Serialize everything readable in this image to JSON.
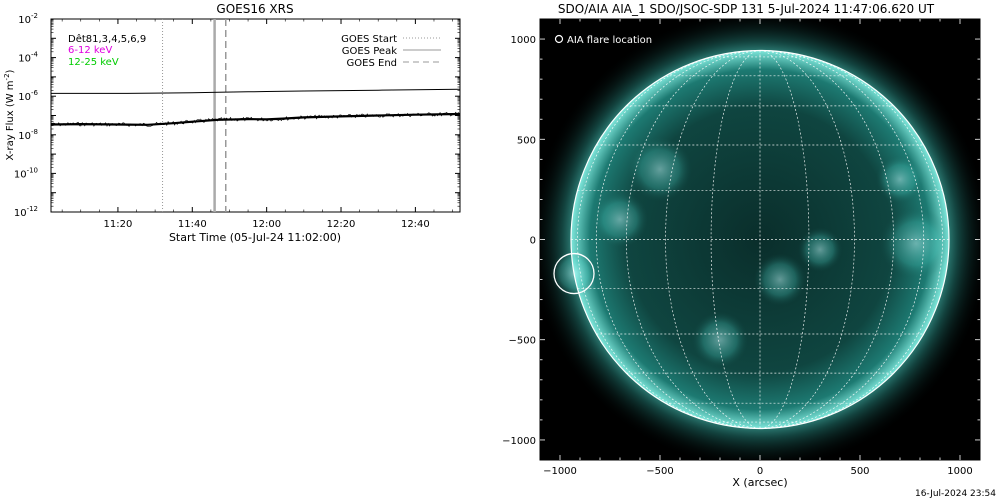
{
  "chart_data": [
    {
      "type": "line",
      "title": "GOES16 XRS",
      "xlabel": "Start Time (05-Jul-24 11:02:00)",
      "ylabel": "X-ray Flux (W m",
      "ylabel_sup": "-2",
      "ylabel_close": ")",
      "y_scale": "log",
      "xlim": [
        "11:02",
        "12:52"
      ],
      "x_ticks": [
        "11:20",
        "11:40",
        "12:00",
        "12:20",
        "12:40"
      ],
      "ylim": [
        1e-12,
        0.01
      ],
      "y_ticks": [
        {
          "value": 0.01,
          "base": "10",
          "exp": "-2"
        },
        {
          "value": 0.0001,
          "base": "10",
          "exp": "-4"
        },
        {
          "value": 1e-06,
          "base": "10",
          "exp": "-6"
        },
        {
          "value": 1e-08,
          "base": "10",
          "exp": "-8"
        },
        {
          "value": 1e-10,
          "base": "10",
          "exp": "-10"
        },
        {
          "value": 1e-12,
          "base": "10",
          "exp": "-12"
        }
      ],
      "annotations": [
        {
          "text": "Dêt81,3,4,5,6,9",
          "color": "#000000"
        },
        {
          "text": "6-12 keV",
          "color": "#e000e0"
        },
        {
          "text": "12-25 keV",
          "color": "#00cc00"
        }
      ],
      "legend_position": "top-right",
      "legend": [
        {
          "label": "GOES Start",
          "style": "dotted"
        },
        {
          "label": "GOES Peak",
          "style": "solid"
        },
        {
          "label": "GOES End",
          "style": "dashed"
        }
      ],
      "event_lines": [
        {
          "name": "GOES Start",
          "x": "11:32"
        },
        {
          "name": "GOES Peak",
          "x": "11:46"
        },
        {
          "name": "GOES End",
          "x": "11:49"
        }
      ],
      "series": [
        {
          "x": [
            "11:02",
            "11:10",
            "11:20",
            "11:30",
            "11:40",
            "11:47",
            "11:55",
            "12:00",
            "12:10",
            "12:20",
            "12:30",
            "12:40",
            "12:52"
          ],
          "values": [
            1.4e-06,
            1.4e-06,
            1.4e-06,
            1.45e-06,
            1.5e-06,
            1.6e-06,
            1.7e-06,
            1.75e-06,
            1.85e-06,
            1.95e-06,
            2.05e-06,
            2.15e-06,
            2.3e-06
          ],
          "color": "#000000"
        },
        {
          "x": [
            "11:02",
            "11:10",
            "11:20",
            "11:28",
            "11:35",
            "11:40",
            "11:47",
            "11:55",
            "12:00",
            "12:05",
            "12:10",
            "12:20",
            "12:30",
            "12:40",
            "12:52"
          ],
          "values": [
            3.4e-08,
            3.6e-08,
            3.4e-08,
            3.3e-08,
            4e-08,
            4.8e-08,
            6e-08,
            6.5e-08,
            6.3e-08,
            7e-08,
            8e-08,
            9e-08,
            1e-07,
            1.1e-07,
            1.2e-07
          ],
          "color": "#000000"
        }
      ]
    },
    {
      "type": "image",
      "title": "SDO/AIA AIA_1 SDO/JSOC-SDP 131  5-Jul-2024 11:47:06.620 UT",
      "xlabel": "X (arcsec)",
      "xlim": [
        -1100,
        1100
      ],
      "ylim": [
        -1100,
        1100
      ],
      "x_ticks": [
        -1000,
        -500,
        0,
        500,
        1000
      ],
      "y_ticks": [
        1000,
        500,
        0,
        -500,
        -1000
      ],
      "annotation": "AIA flare location",
      "solar_radius_arcsec": 945,
      "grid": true,
      "flare_marker": {
        "x": -930,
        "y": -170,
        "radius_arcsec": 100
      },
      "colors": {
        "background": "#000000",
        "disk": "#0d3a36",
        "limb": "#8ff5ea",
        "grid": "#ffffff"
      }
    }
  ],
  "footer_timestamp": "16-Jul-2024 23:54"
}
